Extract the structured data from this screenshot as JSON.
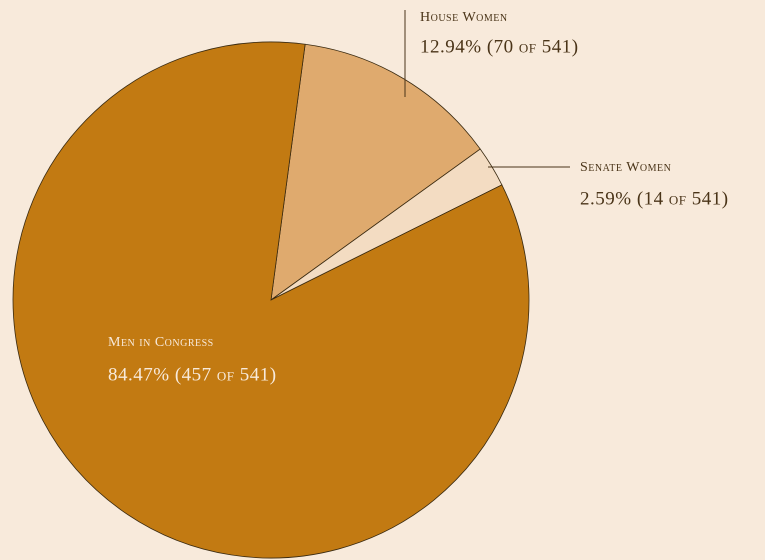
{
  "chart_data": {
    "type": "pie",
    "categories": [
      "House Women",
      "Senate Women",
      "Men in Congress"
    ],
    "values": [
      12.94,
      2.59,
      84.47
    ],
    "value_labels": [
      "12.94% (70 of 541)",
      "2.59% (14 of 541)",
      "84.47% (457 of 541)"
    ],
    "colors": [
      "#dfaa6e",
      "#f3dcc2",
      "#c27a12"
    ]
  }
}
